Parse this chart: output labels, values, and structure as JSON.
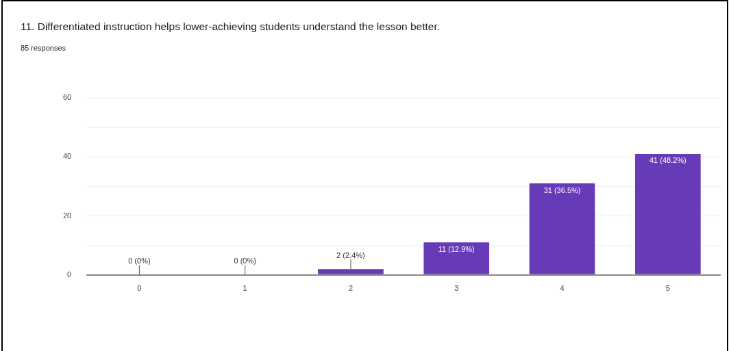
{
  "chart_data": {
    "type": "bar",
    "title": "11.  Differentiated instruction helps lower-achieving students understand the lesson better.",
    "subtitle": "85 responses",
    "categories": [
      "0",
      "1",
      "2",
      "3",
      "4",
      "5"
    ],
    "values": [
      0,
      0,
      2,
      11,
      31,
      41
    ],
    "value_labels": [
      "0 (0%)",
      "0 (0%)",
      "2 (2.4%)",
      "11 (12.9%)",
      "31 (36.5%)",
      "41 (48.2%)"
    ],
    "color": "#673ab7",
    "ylim": [
      0,
      60
    ],
    "yticks": [
      0,
      {
        "value": 10,
        "label": null
      },
      20,
      {
        "value": 30,
        "label": null
      },
      40,
      {
        "value": 50,
        "label": null
      },
      60
    ],
    "grid": "y",
    "legend": false
  }
}
